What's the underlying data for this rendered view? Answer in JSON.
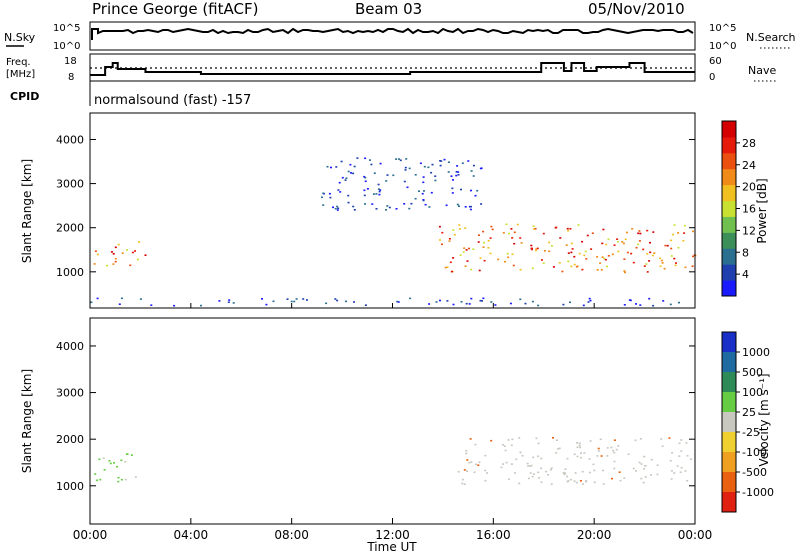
{
  "header": {
    "station": "Prince George (fitACF)",
    "beam": "Beam 03",
    "date": "05/Nov/2010"
  },
  "status": {
    "nsky_label": "N.Sky",
    "nsearch_label": "N.Search",
    "freq_label_line1": "Freq.",
    "freq_label_line2": "[MHz]",
    "nave_label": "Nave",
    "cpid_label": "CPID",
    "cpid_text": "normalsound (fast) -157",
    "noise_ticks_left": [
      "10^5",
      "10^0"
    ],
    "noise_ticks_right": [
      "10^5",
      "10^0"
    ],
    "freq_ticks": [
      "18",
      "8"
    ],
    "nave_ticks": [
      "60",
      "0"
    ]
  },
  "chart_data": [
    {
      "type": "heatmap",
      "name": "power",
      "ylabel": "Slant Range [km]",
      "xlabel": "",
      "x_range_hours": [
        0,
        24
      ],
      "ylim": [
        180,
        4600
      ],
      "yticks": [
        1000,
        2000,
        3000,
        4000
      ],
      "colorbar": {
        "label": "Power [dB]",
        "ticks": [
          4,
          8,
          12,
          16,
          20,
          24,
          28
        ],
        "colors": [
          "#1a1aff",
          "#1f3fae",
          "#2a6f8f",
          "#3d8f5a",
          "#70c050",
          "#c8e030",
          "#f0c020",
          "#f08a18",
          "#ec5010",
          "#e61a0a",
          "#d40000"
        ]
      },
      "features": [
        {
          "desc": "lower band",
          "hours": [
            13.8,
            24
          ],
          "range_km": [
            1000,
            2100
          ],
          "level": "high"
        },
        {
          "desc": "early band",
          "hours": [
            0,
            2.2
          ],
          "range_km": [
            1150,
            1700
          ],
          "level": "high"
        },
        {
          "desc": "upper patch",
          "hours": [
            9,
            15.5
          ],
          "range_km": [
            2400,
            3600
          ],
          "level": "low"
        },
        {
          "desc": "ground scatter floor",
          "hours": [
            0,
            24
          ],
          "range_km": [
            250,
            420
          ],
          "level": "low"
        }
      ]
    },
    {
      "type": "heatmap",
      "name": "velocity",
      "ylabel": "Slant Range [km]",
      "xlabel": "Time UT",
      "x_range_hours": [
        0,
        24
      ],
      "ylim": [
        180,
        4600
      ],
      "yticks": [
        1000,
        2000,
        3000,
        4000
      ],
      "colorbar": {
        "label": "Velocity [m s⁻¹]",
        "ticks": [
          1000,
          500,
          100,
          25,
          -25,
          -100,
          -500,
          -1000
        ],
        "colors": [
          "#1a2fc8",
          "#1f6aa0",
          "#2e8b57",
          "#66cc44",
          "#c8c8c0",
          "#f0d030",
          "#f0a020",
          "#e86010",
          "#e02010"
        ]
      },
      "features": [
        {
          "desc": "ground scatter grey band",
          "hours": [
            14.5,
            24
          ],
          "range_km": [
            1050,
            2050
          ],
          "level": "grey"
        },
        {
          "desc": "early green band",
          "hours": [
            0,
            2
          ],
          "range_km": [
            1100,
            1700
          ],
          "level": "green"
        }
      ]
    }
  ],
  "xaxis": {
    "title": "Time UT",
    "ticks": [
      "00:00",
      "04:00",
      "08:00",
      "12:00",
      "16:00",
      "20:00",
      "00:00"
    ]
  }
}
